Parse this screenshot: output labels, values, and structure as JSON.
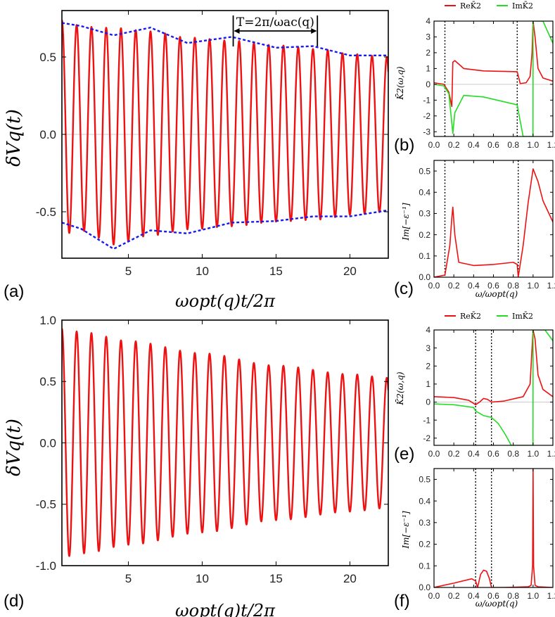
{
  "chart_data": [
    {
      "id": "a",
      "panel_label": "(a)",
      "type": "line",
      "xlabel": "ωopt(q)t/2π",
      "ylabel": "δVq(t)",
      "xlim": [
        0.5,
        22.6
      ],
      "ylim": [
        -0.8,
        0.8
      ],
      "xticks": [
        "5",
        "10",
        "15",
        "20"
      ],
      "yticks": [
        "0.5",
        "0.0",
        "-0.5"
      ],
      "annotation": "T=2π/ωac(q)",
      "series": [
        {
          "name": "δVq(t)",
          "color": "#ee1111",
          "style": "solid",
          "amplitude_envelope_x": [
            0.5,
            2,
            4,
            6.5,
            9,
            12,
            15,
            18,
            20,
            22.6
          ],
          "amplitude_envelope_y": [
            0.69,
            0.66,
            0.7,
            0.66,
            0.62,
            0.6,
            0.57,
            0.55,
            0.52,
            0.5
          ],
          "offset_envelope_y": [
            0.08,
            0.06,
            -0.02,
            0.01,
            0.01,
            0.01,
            0.01,
            0.0,
            0.0,
            0.0
          ]
        },
        {
          "name": "upper envelope",
          "color": "#1a1aee",
          "style": "dashed",
          "x": [
            0.5,
            1.8,
            4.0,
            6.5,
            9.0,
            12.0,
            15.0,
            17.5,
            20.0,
            22.6
          ],
          "y": [
            0.72,
            0.7,
            0.64,
            0.69,
            0.59,
            0.63,
            0.56,
            0.57,
            0.51,
            0.51
          ]
        },
        {
          "name": "lower envelope",
          "color": "#1a1aee",
          "style": "dashed",
          "x": [
            0.5,
            1.8,
            4.0,
            6.5,
            9.0,
            12.0,
            15.0,
            17.5,
            20.0,
            22.6
          ],
          "y": [
            -0.57,
            -0.61,
            -0.74,
            -0.62,
            -0.64,
            -0.57,
            -0.56,
            -0.53,
            -0.53,
            -0.49
          ]
        }
      ]
    },
    {
      "id": "b",
      "panel_label": "(b)",
      "type": "line",
      "xlabel": "",
      "ylabel": "K̄2(ω,q)",
      "xlim": [
        0.0,
        1.2
      ],
      "ylim": [
        -3.3,
        4.0
      ],
      "xticks": [
        "0.0",
        "0.2",
        "0.4",
        "0.6",
        "0.8",
        "1.0",
        "1.2"
      ],
      "yticks": [
        "4",
        "3",
        "2",
        "1",
        "0",
        "-1",
        "-2",
        "-3"
      ],
      "vlines": [
        0.11,
        0.84
      ],
      "legend": [
        "ReK̄2",
        "ImK̄2"
      ],
      "series": [
        {
          "name": "ReK̄2",
          "color": "#ee1111",
          "x": [
            0.0,
            0.1,
            0.15,
            0.18,
            0.19,
            0.21,
            0.3,
            0.5,
            0.84,
            0.87,
            0.93,
            0.97,
            0.99,
            1.0,
            1.02,
            1.05,
            1.1,
            1.2
          ],
          "y": [
            0.1,
            0.0,
            -0.5,
            -1.4,
            1.4,
            1.5,
            1.0,
            0.85,
            0.8,
            0.05,
            0.1,
            0.5,
            2.0,
            4.0,
            3.0,
            1.0,
            0.4,
            0.2
          ]
        },
        {
          "name": "ImK̄2",
          "color": "#22dd22",
          "x": [
            0.0,
            0.1,
            0.15,
            0.19,
            0.21,
            0.3,
            0.5,
            0.84,
            0.86,
            0.9,
            0.93,
            0.999,
            1.0,
            1.03,
            1.1,
            1.2
          ],
          "y": [
            0.0,
            -0.1,
            -0.6,
            -3.1,
            -1.8,
            -0.7,
            -0.8,
            -1.3,
            -2.0,
            -3.3,
            -3.3,
            -3.3,
            4.0,
            4.0,
            4.0,
            2.6
          ]
        }
      ]
    },
    {
      "id": "c",
      "panel_label": "(c)",
      "type": "line",
      "xlabel": "ω/ωopt(q)",
      "ylabel": "Im[−ε⁻¹]",
      "xlim": [
        0.0,
        1.2
      ],
      "ylim": [
        0.0,
        0.55
      ],
      "xticks": [
        "0.0",
        "0.2",
        "0.4",
        "0.6",
        "0.8",
        "1.0",
        "1.2"
      ],
      "yticks": [
        "0.0",
        "0.1",
        "0.2",
        "0.3",
        "0.4",
        "0.5"
      ],
      "vlines": [
        0.11,
        0.85
      ],
      "series": [
        {
          "name": "Im[−ε⁻¹]",
          "color": "#ee1111",
          "x": [
            0.0,
            0.11,
            0.16,
            0.18,
            0.19,
            0.21,
            0.25,
            0.4,
            0.6,
            0.8,
            0.84,
            0.85,
            0.9,
            0.95,
            1.0,
            1.05,
            1.1,
            1.2
          ],
          "y": [
            0.0,
            0.01,
            0.15,
            0.28,
            0.33,
            0.2,
            0.07,
            0.055,
            0.06,
            0.07,
            0.06,
            0.0,
            0.15,
            0.35,
            0.51,
            0.45,
            0.36,
            0.26
          ]
        }
      ]
    },
    {
      "id": "d",
      "panel_label": "(d)",
      "type": "line",
      "xlabel": "ωopt(q)t/2π",
      "ylabel": "δVq(t)",
      "xlim": [
        0.5,
        22.6
      ],
      "ylim": [
        -1.0,
        1.0
      ],
      "xticks": [
        "5",
        "10",
        "15",
        "20"
      ],
      "yticks": [
        "1.0",
        "0.5",
        "0.0",
        "-0.5",
        "-1.0"
      ],
      "series": [
        {
          "name": "δVq(t)",
          "color": "#ee1111",
          "style": "solid",
          "amplitude_envelope_x": [
            0.5,
            2,
            5,
            10,
            15,
            20,
            22.6
          ],
          "amplitude_envelope_y": [
            0.93,
            0.9,
            0.83,
            0.73,
            0.63,
            0.56,
            0.53
          ],
          "offset_envelope_y": [
            0.0,
            0.0,
            0.0,
            0.0,
            0.0,
            0.0,
            0.0
          ]
        }
      ]
    },
    {
      "id": "e",
      "panel_label": "(e)",
      "type": "line",
      "xlabel": "",
      "ylabel": "K̄2(ω,q)",
      "xlim": [
        0.0,
        1.2
      ],
      "ylim": [
        -2.4,
        4.0
      ],
      "xticks": [
        "0.0",
        "0.2",
        "0.4",
        "0.6",
        "0.8",
        "1.0",
        "1.2"
      ],
      "yticks": [
        "4",
        "3",
        "2",
        "1",
        "0",
        "-1",
        "-2"
      ],
      "vlines": [
        0.42,
        0.58
      ],
      "legend": [
        "ReK̄2",
        "ImK̄2"
      ],
      "series": [
        {
          "name": "ReK̄2",
          "color": "#ee1111",
          "x": [
            0.0,
            0.2,
            0.35,
            0.42,
            0.46,
            0.5,
            0.54,
            0.58,
            0.7,
            0.9,
            0.97,
            0.99,
            1.0,
            1.02,
            1.05,
            1.1,
            1.2
          ],
          "y": [
            0.3,
            0.25,
            0.1,
            -0.15,
            0.0,
            0.2,
            0.15,
            0.0,
            0.05,
            0.3,
            1.0,
            3.0,
            4.0,
            3.5,
            1.5,
            0.7,
            0.3
          ]
        },
        {
          "name": "ImK̄2",
          "color": "#22dd22",
          "x": [
            0.0,
            0.2,
            0.4,
            0.42,
            0.5,
            0.58,
            0.65,
            0.72,
            0.78,
            0.8,
            0.999,
            1.0,
            1.05,
            1.12,
            1.2
          ],
          "y": [
            -0.1,
            -0.15,
            -0.3,
            -0.5,
            -0.75,
            -0.85,
            -1.2,
            -1.8,
            -2.4,
            -2.4,
            -2.4,
            4.0,
            4.0,
            4.0,
            3.4
          ]
        }
      ]
    },
    {
      "id": "f",
      "panel_label": "(f)",
      "type": "line",
      "xlabel": "ω/ωopt(q)",
      "ylabel": "Im[−ε⁻¹]",
      "xlim": [
        0.0,
        1.2
      ],
      "ylim": [
        0.0,
        0.55
      ],
      "xticks": [
        "0.0",
        "0.2",
        "0.4",
        "0.6",
        "0.8",
        "1.0",
        "1.2"
      ],
      "yticks": [
        "0.0",
        "0.1",
        "0.2",
        "0.3",
        "0.4",
        "0.5"
      ],
      "vlines": [
        0.42,
        0.58
      ],
      "series": [
        {
          "name": "Im[−ε⁻¹]",
          "color": "#ee1111",
          "x": [
            0.0,
            0.2,
            0.38,
            0.42,
            0.44,
            0.47,
            0.5,
            0.53,
            0.56,
            0.58,
            0.7,
            0.95,
            0.98,
            0.995,
            1.0,
            1.005,
            1.02,
            1.05,
            1.2
          ],
          "y": [
            0.0,
            0.02,
            0.04,
            0.03,
            0.0,
            0.06,
            0.08,
            0.075,
            0.04,
            0.0,
            0.0,
            0.003,
            0.01,
            0.1,
            0.55,
            0.1,
            0.01,
            0.003,
            0.0
          ]
        }
      ]
    }
  ]
}
